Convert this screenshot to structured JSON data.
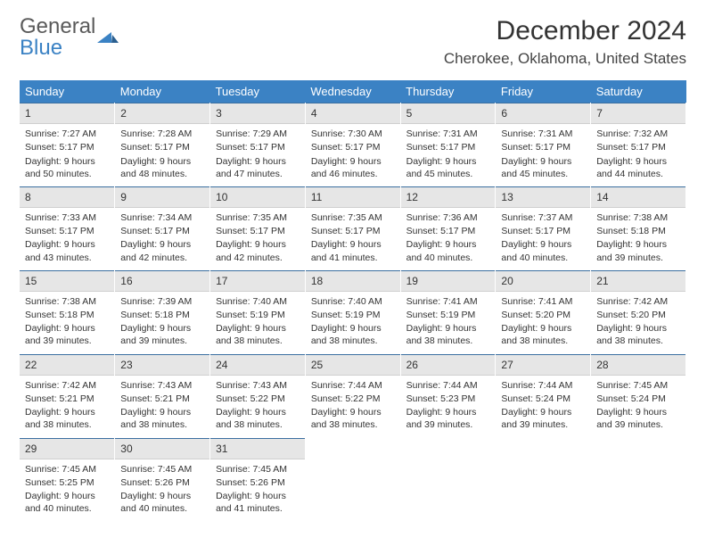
{
  "logo": {
    "text1": "General",
    "text2": "Blue"
  },
  "title": "December 2024",
  "location": "Cherokee, Oklahoma, United States",
  "colors": {
    "header_bg": "#3b82c4",
    "header_text": "#ffffff",
    "daynum_bg": "#e6e6e6",
    "daynum_border_top": "#3b6fa0",
    "text": "#333333",
    "logo_blue": "#3b82c4",
    "logo_gray": "#5a5a5a"
  },
  "weekdays": [
    "Sunday",
    "Monday",
    "Tuesday",
    "Wednesday",
    "Thursday",
    "Friday",
    "Saturday"
  ],
  "days": [
    {
      "n": "1",
      "sr": "7:27 AM",
      "ss": "5:17 PM",
      "dl": "9 hours and 50 minutes."
    },
    {
      "n": "2",
      "sr": "7:28 AM",
      "ss": "5:17 PM",
      "dl": "9 hours and 48 minutes."
    },
    {
      "n": "3",
      "sr": "7:29 AM",
      "ss": "5:17 PM",
      "dl": "9 hours and 47 minutes."
    },
    {
      "n": "4",
      "sr": "7:30 AM",
      "ss": "5:17 PM",
      "dl": "9 hours and 46 minutes."
    },
    {
      "n": "5",
      "sr": "7:31 AM",
      "ss": "5:17 PM",
      "dl": "9 hours and 45 minutes."
    },
    {
      "n": "6",
      "sr": "7:31 AM",
      "ss": "5:17 PM",
      "dl": "9 hours and 45 minutes."
    },
    {
      "n": "7",
      "sr": "7:32 AM",
      "ss": "5:17 PM",
      "dl": "9 hours and 44 minutes."
    },
    {
      "n": "8",
      "sr": "7:33 AM",
      "ss": "5:17 PM",
      "dl": "9 hours and 43 minutes."
    },
    {
      "n": "9",
      "sr": "7:34 AM",
      "ss": "5:17 PM",
      "dl": "9 hours and 42 minutes."
    },
    {
      "n": "10",
      "sr": "7:35 AM",
      "ss": "5:17 PM",
      "dl": "9 hours and 42 minutes."
    },
    {
      "n": "11",
      "sr": "7:35 AM",
      "ss": "5:17 PM",
      "dl": "9 hours and 41 minutes."
    },
    {
      "n": "12",
      "sr": "7:36 AM",
      "ss": "5:17 PM",
      "dl": "9 hours and 40 minutes."
    },
    {
      "n": "13",
      "sr": "7:37 AM",
      "ss": "5:17 PM",
      "dl": "9 hours and 40 minutes."
    },
    {
      "n": "14",
      "sr": "7:38 AM",
      "ss": "5:18 PM",
      "dl": "9 hours and 39 minutes."
    },
    {
      "n": "15",
      "sr": "7:38 AM",
      "ss": "5:18 PM",
      "dl": "9 hours and 39 minutes."
    },
    {
      "n": "16",
      "sr": "7:39 AM",
      "ss": "5:18 PM",
      "dl": "9 hours and 39 minutes."
    },
    {
      "n": "17",
      "sr": "7:40 AM",
      "ss": "5:19 PM",
      "dl": "9 hours and 38 minutes."
    },
    {
      "n": "18",
      "sr": "7:40 AM",
      "ss": "5:19 PM",
      "dl": "9 hours and 38 minutes."
    },
    {
      "n": "19",
      "sr": "7:41 AM",
      "ss": "5:19 PM",
      "dl": "9 hours and 38 minutes."
    },
    {
      "n": "20",
      "sr": "7:41 AM",
      "ss": "5:20 PM",
      "dl": "9 hours and 38 minutes."
    },
    {
      "n": "21",
      "sr": "7:42 AM",
      "ss": "5:20 PM",
      "dl": "9 hours and 38 minutes."
    },
    {
      "n": "22",
      "sr": "7:42 AM",
      "ss": "5:21 PM",
      "dl": "9 hours and 38 minutes."
    },
    {
      "n": "23",
      "sr": "7:43 AM",
      "ss": "5:21 PM",
      "dl": "9 hours and 38 minutes."
    },
    {
      "n": "24",
      "sr": "7:43 AM",
      "ss": "5:22 PM",
      "dl": "9 hours and 38 minutes."
    },
    {
      "n": "25",
      "sr": "7:44 AM",
      "ss": "5:22 PM",
      "dl": "9 hours and 38 minutes."
    },
    {
      "n": "26",
      "sr": "7:44 AM",
      "ss": "5:23 PM",
      "dl": "9 hours and 39 minutes."
    },
    {
      "n": "27",
      "sr": "7:44 AM",
      "ss": "5:24 PM",
      "dl": "9 hours and 39 minutes."
    },
    {
      "n": "28",
      "sr": "7:45 AM",
      "ss": "5:24 PM",
      "dl": "9 hours and 39 minutes."
    },
    {
      "n": "29",
      "sr": "7:45 AM",
      "ss": "5:25 PM",
      "dl": "9 hours and 40 minutes."
    },
    {
      "n": "30",
      "sr": "7:45 AM",
      "ss": "5:26 PM",
      "dl": "9 hours and 40 minutes."
    },
    {
      "n": "31",
      "sr": "7:45 AM",
      "ss": "5:26 PM",
      "dl": "9 hours and 41 minutes."
    }
  ],
  "labels": {
    "sunrise": "Sunrise:",
    "sunset": "Sunset:",
    "daylight": "Daylight:"
  }
}
